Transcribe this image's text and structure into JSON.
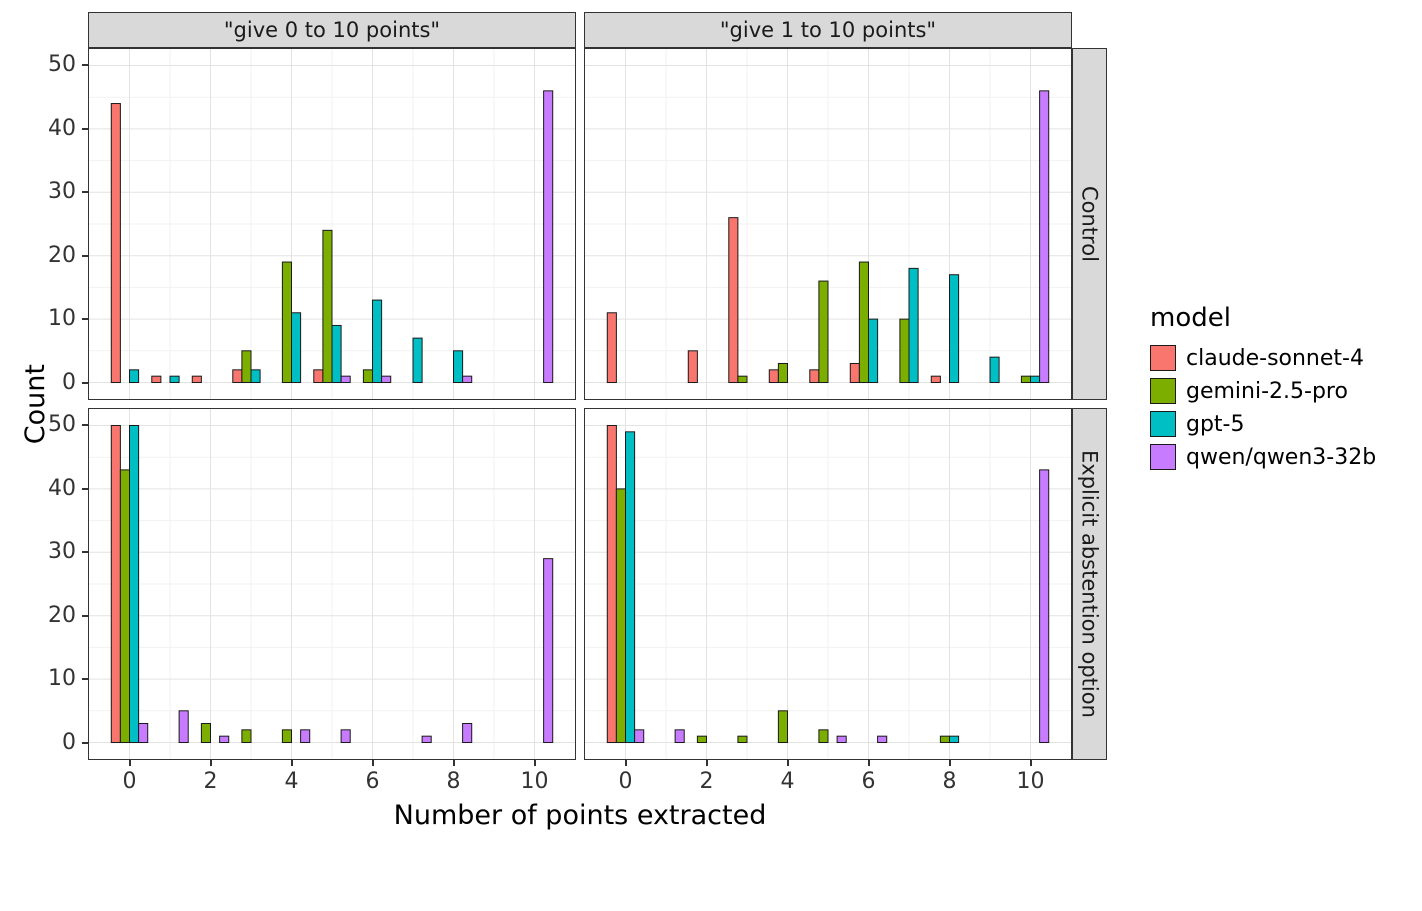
{
  "chart_data": {
    "type": "bar",
    "title": "",
    "xlabel": "Number of points extracted",
    "ylabel": "Count",
    "legend_title": "model",
    "legend_position": "right",
    "grid": true,
    "x_ticks": [
      0,
      2,
      4,
      6,
      8,
      10
    ],
    "x_minor": [
      1,
      3,
      5,
      7,
      9
    ],
    "y_ticks": [
      0,
      10,
      20,
      30,
      40,
      50
    ],
    "y_minor": [
      5,
      15,
      25,
      35,
      45
    ],
    "xlim": [
      -1.0,
      11.0
    ],
    "ylim": [
      -2.6,
      52.6
    ],
    "x_values": [
      0,
      1,
      2,
      3,
      4,
      5,
      6,
      7,
      8,
      9,
      10
    ],
    "col_facets": [
      "\"give 0 to 10 points\"",
      "\"give 1 to 10 points\""
    ],
    "row_facets": [
      "Control",
      "Explicit abstention option"
    ],
    "colors": {
      "strip_bg": "#d9d9d9",
      "panel_border": "#333333",
      "grid_major": "#e3e3e3",
      "grid_minor": "#f2f2f2",
      "bar_outline": "#1a1a1a"
    },
    "series": [
      {
        "name": "claude-sonnet-4",
        "color": "#F8766D"
      },
      {
        "name": "gemini-2.5-pro",
        "color": "#7CAE00"
      },
      {
        "name": "gpt-5",
        "color": "#00BFC4"
      },
      {
        "name": "qwen/qwen3-32b",
        "color": "#C77CFF"
      }
    ],
    "panels": [
      {
        "row": "Control",
        "col": "\"give 0 to 10 points\"",
        "counts": {
          "claude-sonnet-4": [
            44,
            1,
            1,
            2,
            0,
            2,
            0,
            0,
            0,
            0,
            0
          ],
          "gemini-2.5-pro": [
            0,
            0,
            0,
            5,
            19,
            24,
            2,
            0,
            0,
            0,
            0
          ],
          "gpt-5": [
            2,
            1,
            0,
            2,
            11,
            9,
            13,
            7,
            5,
            0,
            0
          ],
          "qwen/qwen3-32b": [
            0,
            0,
            0,
            0,
            0,
            1,
            1,
            0,
            1,
            0,
            46
          ]
        }
      },
      {
        "row": "Control",
        "col": "\"give 1 to 10 points\"",
        "counts": {
          "claude-sonnet-4": [
            11,
            0,
            5,
            26,
            2,
            2,
            3,
            0,
            1,
            0,
            0
          ],
          "gemini-2.5-pro": [
            0,
            0,
            0,
            1,
            3,
            16,
            19,
            10,
            0,
            0,
            1
          ],
          "gpt-5": [
            0,
            0,
            0,
            0,
            0,
            0,
            10,
            18,
            17,
            4,
            1
          ],
          "qwen/qwen3-32b": [
            0,
            0,
            0,
            0,
            0,
            0,
            0,
            0,
            0,
            0,
            46
          ]
        }
      },
      {
        "row": "Explicit abstention option",
        "col": "\"give 0 to 10 points\"",
        "counts": {
          "claude-sonnet-4": [
            50,
            0,
            0,
            0,
            0,
            0,
            0,
            0,
            0,
            0,
            0
          ],
          "gemini-2.5-pro": [
            43,
            0,
            3,
            2,
            2,
            0,
            0,
            0,
            0,
            0,
            0
          ],
          "gpt-5": [
            50,
            0,
            0,
            0,
            0,
            0,
            0,
            0,
            0,
            0,
            0
          ],
          "qwen/qwen3-32b": [
            3,
            5,
            1,
            0,
            2,
            2,
            0,
            1,
            3,
            0,
            29
          ]
        }
      },
      {
        "row": "Explicit abstention option",
        "col": "\"give 1 to 10 points\"",
        "counts": {
          "claude-sonnet-4": [
            50,
            0,
            0,
            0,
            0,
            0,
            0,
            0,
            0,
            0,
            0
          ],
          "gemini-2.5-pro": [
            40,
            0,
            1,
            1,
            5,
            2,
            0,
            0,
            1,
            0,
            0
          ],
          "gpt-5": [
            49,
            0,
            0,
            0,
            0,
            0,
            0,
            0,
            1,
            0,
            0
          ],
          "qwen/qwen3-32b": [
            2,
            2,
            0,
            0,
            0,
            1,
            1,
            0,
            0,
            0,
            43
          ]
        }
      }
    ]
  }
}
